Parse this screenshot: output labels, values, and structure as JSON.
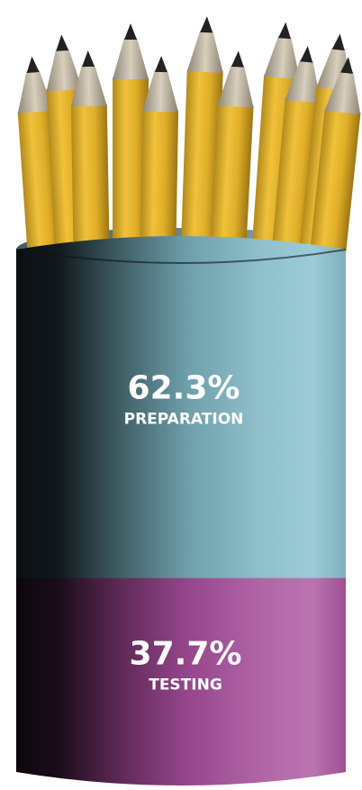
{
  "chart_data": {
    "type": "bar",
    "stacked": true,
    "orientation": "vertical",
    "categories": [
      "PREPARATION",
      "TESTING"
    ],
    "values": [
      62.3,
      37.7
    ],
    "value_labels": [
      "62.3%",
      "37.7%"
    ],
    "unit": "%",
    "title": "",
    "colors": [
      "#6a9fae",
      "#a4539a"
    ]
  }
}
